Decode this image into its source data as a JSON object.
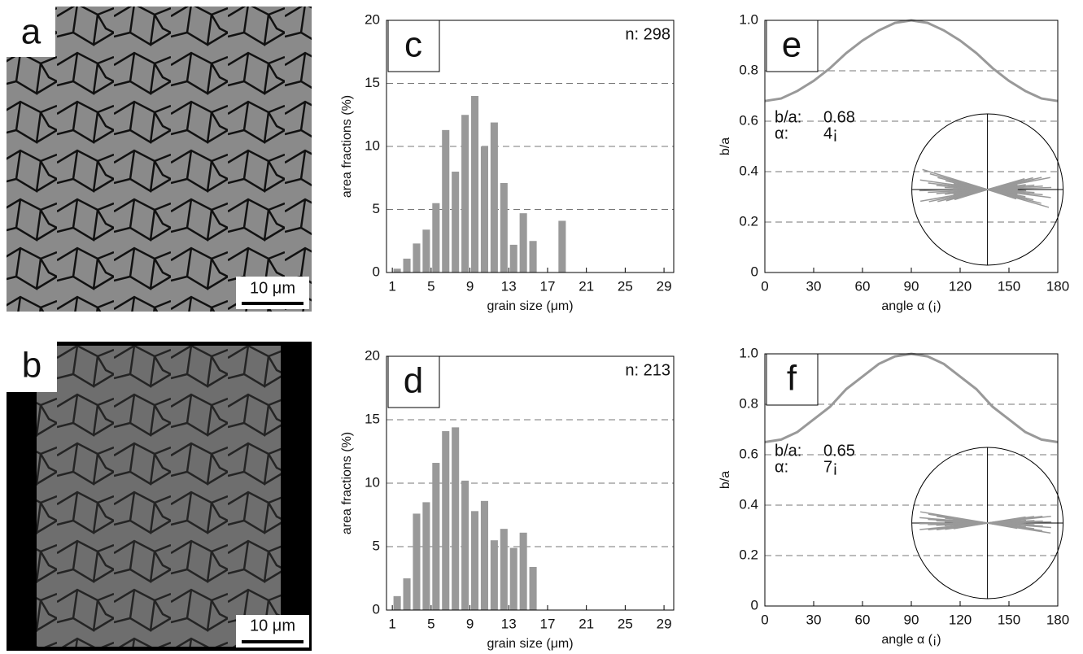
{
  "panels": [
    {
      "label": "a",
      "scale_bar": "10 μm"
    },
    {
      "label": "b",
      "scale_bar": "10 μm"
    }
  ],
  "chart_data": [
    {
      "type": "histogram",
      "label": "c",
      "annotation": "n: 298",
      "xlabel": "grain size (μm)",
      "ylabel": "area fractions (%)",
      "bins": [
        1,
        2,
        3,
        4,
        5,
        6,
        7,
        8,
        9,
        10,
        11,
        12,
        13,
        14,
        15,
        16,
        17,
        18,
        19
      ],
      "values": [
        0.3,
        1.1,
        2.3,
        3.4,
        5.5,
        11.3,
        8.0,
        12.5,
        14.0,
        10.0,
        11.9,
        7.1,
        2.2,
        4.7,
        2.5,
        0,
        0,
        4.1
      ],
      "color": "#999999",
      "xlim": [
        0.4,
        30
      ],
      "xticks": [
        1,
        5,
        9,
        13,
        17,
        21,
        25,
        29
      ],
      "ylim": [
        0,
        20
      ],
      "yticks": [
        0,
        5,
        10,
        15,
        20
      ],
      "grid": true
    },
    {
      "type": "histogram",
      "label": "d",
      "annotation": "n: 213",
      "xlabel": "grain size (μm)",
      "ylabel": "area fractions (%)",
      "bins": [
        1,
        2,
        3,
        4,
        5,
        6,
        7,
        8,
        9,
        10,
        11,
        12,
        13,
        14,
        15,
        16
      ],
      "values": [
        1.1,
        2.5,
        7.6,
        8.5,
        11.6,
        14.1,
        14.4,
        10.2,
        7.8,
        8.6,
        5.5,
        6.4,
        4.9,
        6.1,
        3.4
      ],
      "color": "#999999",
      "xlim": [
        0.4,
        30
      ],
      "xticks": [
        1,
        5,
        9,
        13,
        17,
        21,
        25,
        29
      ],
      "ylim": [
        0,
        20
      ],
      "yticks": [
        0,
        5,
        10,
        15,
        20
      ],
      "grid": true
    },
    {
      "type": "line",
      "label": "e",
      "annotations": [
        "b/a:",
        "0.68",
        "α:",
        "4¡"
      ],
      "xlabel": "angle α (¡)",
      "ylabel": "b/a",
      "x": [
        0,
        10,
        20,
        30,
        40,
        50,
        60,
        70,
        80,
        90,
        100,
        110,
        120,
        130,
        140,
        150,
        160,
        170,
        180
      ],
      "values": [
        0.68,
        0.69,
        0.72,
        0.76,
        0.81,
        0.87,
        0.92,
        0.96,
        0.99,
        1.0,
        0.99,
        0.96,
        0.92,
        0.87,
        0.81,
        0.76,
        0.72,
        0.69,
        0.68
      ],
      "color": "#999999",
      "xlim": [
        0,
        180
      ],
      "xticks": [
        0,
        30,
        60,
        90,
        120,
        150,
        180
      ],
      "ylim": [
        0,
        1
      ],
      "yticks": [
        0,
        0.2,
        0.4,
        0.6,
        0.8,
        {
          "value": 1,
          "label": "1.0"
        }
      ],
      "grid": true
    },
    {
      "type": "line",
      "label": "f",
      "annotations": [
        "b/a:",
        "0.65",
        "α:",
        "7¡"
      ],
      "xlabel": "angle α (¡)",
      "ylabel": "b/a",
      "x": [
        0,
        10,
        20,
        30,
        40,
        50,
        60,
        70,
        80,
        90,
        100,
        110,
        120,
        130,
        140,
        150,
        160,
        170,
        180
      ],
      "values": [
        0.65,
        0.66,
        0.69,
        0.74,
        0.79,
        0.86,
        0.91,
        0.96,
        0.99,
        1.0,
        0.99,
        0.96,
        0.91,
        0.86,
        0.79,
        0.74,
        0.69,
        0.66,
        0.65
      ],
      "color": "#999999",
      "xlim": [
        0,
        180
      ],
      "xticks": [
        0,
        30,
        60,
        90,
        120,
        150,
        180
      ],
      "ylim": [
        0,
        1
      ],
      "yticks": [
        0,
        0.2,
        0.4,
        0.6,
        0.8,
        {
          "value": 1,
          "label": "1.0"
        }
      ],
      "grid": true
    }
  ]
}
